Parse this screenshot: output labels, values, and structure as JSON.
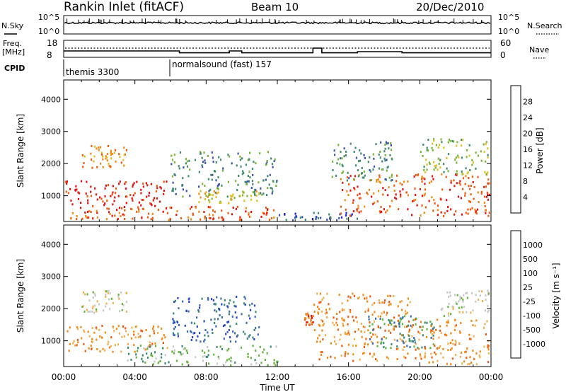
{
  "header": {
    "station": "Rankin Inlet (fitACF)",
    "beam": "Beam 10",
    "date": "20/Dec/2010"
  },
  "status_panel": {
    "nsky_label": "N.Sky",
    "nsky_ticks": [
      "10^5",
      "10^0"
    ],
    "nsearch_label": "N.Search",
    "nsearch_ticks": [
      "10^5",
      "10^0"
    ],
    "freq_label_1": "Freq.",
    "freq_label_2": "[MHz]",
    "freq_ticks": [
      "18",
      "8"
    ],
    "nave_label": "Nave",
    "nave_ticks": [
      "60",
      "0"
    ],
    "cpid_label": "CPID",
    "cpid_segments": [
      {
        "name": "themis 3300",
        "start_hour": 0
      },
      {
        "name": "normalsound (fast) 157",
        "start_hour": 6
      }
    ],
    "freq_steps": [
      {
        "start": 0.0,
        "end": 6.5,
        "value": 11.5
      },
      {
        "start": 6.5,
        "end": 9.3,
        "value": 10.2
      },
      {
        "start": 9.3,
        "end": 10.0,
        "value": 11.5
      },
      {
        "start": 10.0,
        "end": 14.0,
        "value": 10.2
      },
      {
        "start": 14.0,
        "end": 14.5,
        "value": 13.5
      },
      {
        "start": 14.5,
        "end": 16.5,
        "value": 10.2
      },
      {
        "start": 16.5,
        "end": 19.0,
        "value": 11.0
      },
      {
        "start": 19.0,
        "end": 24.0,
        "value": 10.2
      }
    ]
  },
  "chart_data": [
    {
      "type": "heatmap",
      "name": "power",
      "ylabel": "Slant Range [km]",
      "ylim": [
        200,
        4600
      ],
      "yticks": [
        "1000",
        "2000",
        "3000",
        "4000"
      ],
      "colorbar_label": "Power [dB]",
      "colorbar_ticks": [
        "4",
        "8",
        "12",
        "16",
        "20",
        "24",
        "28"
      ],
      "colors": [
        "#1f1fd8",
        "#3a55b0",
        "#3f8c6e",
        "#7ab43a",
        "#e0c020",
        "#f08a14",
        "#f05a10",
        "#e81010"
      ],
      "clusters": [
        {
          "t0": 0.0,
          "t1": 5.8,
          "r0": 650,
          "r1": 1500,
          "level": 7
        },
        {
          "t0": 0.3,
          "t1": 5.5,
          "r0": 300,
          "r1": 650,
          "level": 6
        },
        {
          "t0": 1.0,
          "t1": 3.5,
          "r0": 1900,
          "r1": 2600,
          "level": 5
        },
        {
          "t0": 5.5,
          "t1": 12.0,
          "r0": 250,
          "r1": 700,
          "level": 6
        },
        {
          "t0": 6.0,
          "t1": 12.0,
          "r0": 1000,
          "r1": 2400,
          "level": 2
        },
        {
          "t0": 7.5,
          "t1": 11.0,
          "r0": 800,
          "r1": 1200,
          "level": 4
        },
        {
          "t0": 12.0,
          "t1": 16.5,
          "r0": 250,
          "r1": 500,
          "level": 1
        },
        {
          "t0": 15.5,
          "t1": 24.0,
          "r0": 400,
          "r1": 1700,
          "level": 6
        },
        {
          "t0": 15.0,
          "t1": 18.5,
          "r0": 1500,
          "r1": 2700,
          "level": 2
        },
        {
          "t0": 20.0,
          "t1": 24.0,
          "r0": 1700,
          "r1": 2800,
          "level": 3
        }
      ]
    },
    {
      "type": "heatmap",
      "name": "velocity",
      "ylabel": "Slant Range [km]",
      "xlabel": "Time UT",
      "ylim": [
        200,
        4600
      ],
      "yticks": [
        "1000",
        "2000",
        "3000",
        "4000"
      ],
      "xticks": [
        "00:00",
        "04:00",
        "08:00",
        "12:00",
        "16:00",
        "20:00",
        "00:00"
      ],
      "colorbar_label": "Velocity [m s⁻¹]",
      "colorbar_ticks": [
        "1000",
        "500",
        "100",
        "25",
        "-25",
        "-100",
        "-500",
        "-1000"
      ],
      "colors": [
        "#2844c8",
        "#3a6cb4",
        "#3a8c70",
        "#62b43a",
        "#c8c8c8",
        "#f0b050",
        "#f08a14",
        "#f05a10",
        "#e81010"
      ],
      "clusters": [
        {
          "t0": 0.0,
          "t1": 5.8,
          "r0": 650,
          "r1": 1500,
          "level": 6
        },
        {
          "t0": 1.0,
          "t1": 3.5,
          "r0": 1900,
          "r1": 2600,
          "level": 4
        },
        {
          "t0": 3.5,
          "t1": 12.0,
          "r0": 250,
          "r1": 900,
          "level": 3
        },
        {
          "t0": 6.0,
          "t1": 11.0,
          "r0": 1000,
          "r1": 2400,
          "level": 1
        },
        {
          "t0": 13.5,
          "t1": 14.0,
          "r0": 1500,
          "r1": 1900,
          "level": 7
        },
        {
          "t0": 14.0,
          "t1": 19.5,
          "r0": 400,
          "r1": 2500,
          "level": 6
        },
        {
          "t0": 17.0,
          "t1": 21.0,
          "r0": 800,
          "r1": 1800,
          "level": 2
        },
        {
          "t0": 19.5,
          "t1": 24.0,
          "r0": 300,
          "r1": 1700,
          "level": 6
        },
        {
          "t0": 21.0,
          "t1": 24.0,
          "r0": 1800,
          "r1": 2600,
          "level": 4
        }
      ]
    }
  ]
}
